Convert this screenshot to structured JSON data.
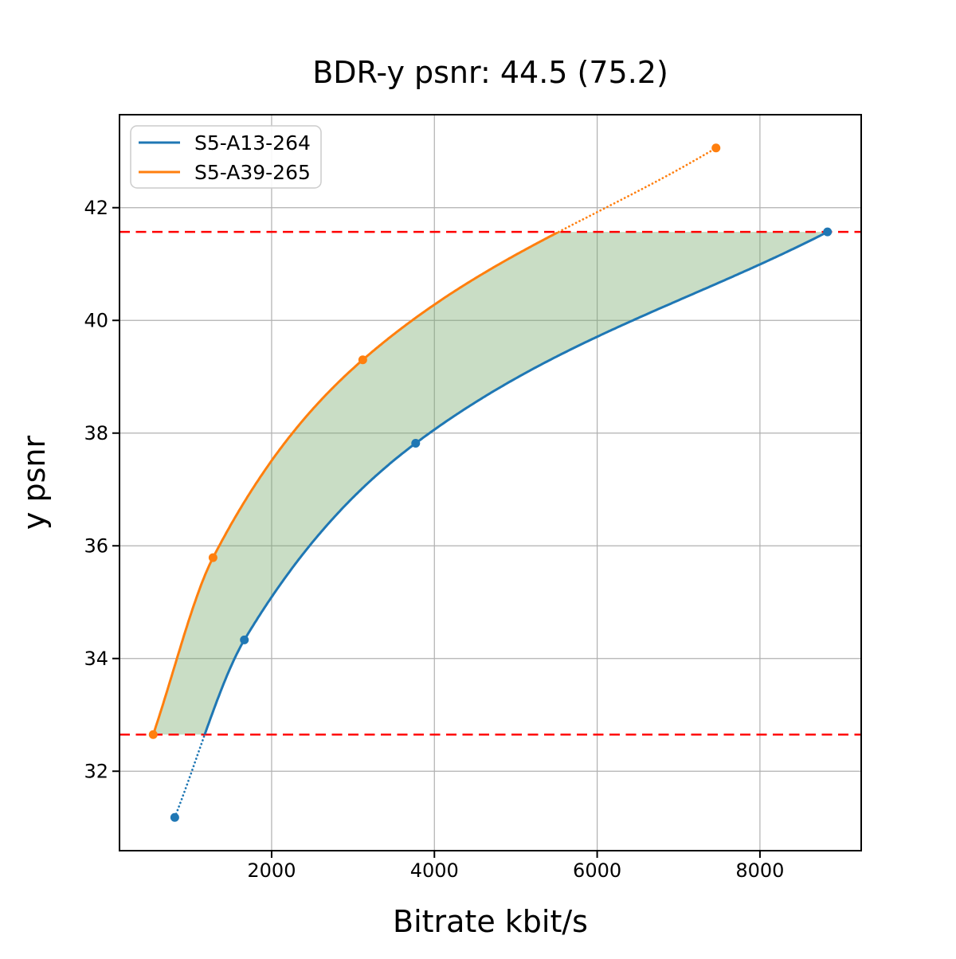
{
  "chart_data": {
    "type": "line",
    "title": "BDR-y psnr: 44.5 (75.2)",
    "xlabel": "Bitrate kbit/s",
    "ylabel": "y psnr",
    "xlim": [
      131,
      9244
    ],
    "ylim": [
      30.59,
      43.65
    ],
    "xticks": [
      "2000",
      "4000",
      "6000",
      "8000"
    ],
    "xtick_values": [
      2000,
      4000,
      6000,
      8000
    ],
    "yticks": [
      "32",
      "34",
      "36",
      "38",
      "40",
      "42"
    ],
    "ytick_values": [
      32,
      34,
      36,
      38,
      40,
      42
    ],
    "grid": true,
    "grid_color": "#b0b0b0",
    "legend": {
      "position": "upper left",
      "entries": [
        "S5-A13-264",
        "S5-A39-265"
      ]
    },
    "series": [
      {
        "name": "S5-A13-264",
        "color": "#1f77b4",
        "x": [
          810,
          1665,
          3770,
          8830
        ],
        "y": [
          31.18,
          34.33,
          37.82,
          41.57
        ],
        "dotted_segment": "below_lower_reference"
      },
      {
        "name": "S5-A39-265",
        "color": "#ff7f0e",
        "x": [
          545,
          1280,
          3120,
          7460
        ],
        "y": [
          32.65,
          35.79,
          39.3,
          43.06
        ],
        "dotted_segment": "above_upper_reference"
      }
    ],
    "reference_lines": [
      {
        "orientation": "horizontal",
        "value": 41.57,
        "color": "#ff0000",
        "style": "dashed"
      },
      {
        "orientation": "horizontal",
        "value": 32.65,
        "color": "#ff0000",
        "style": "dashed"
      }
    ],
    "shaded_region": {
      "between": [
        "S5-A39-265",
        "S5-A13-264"
      ],
      "clipped_to_psnr": [
        32.65,
        41.57
      ],
      "color": "rgba(120, 170, 110, 0.4)"
    }
  }
}
